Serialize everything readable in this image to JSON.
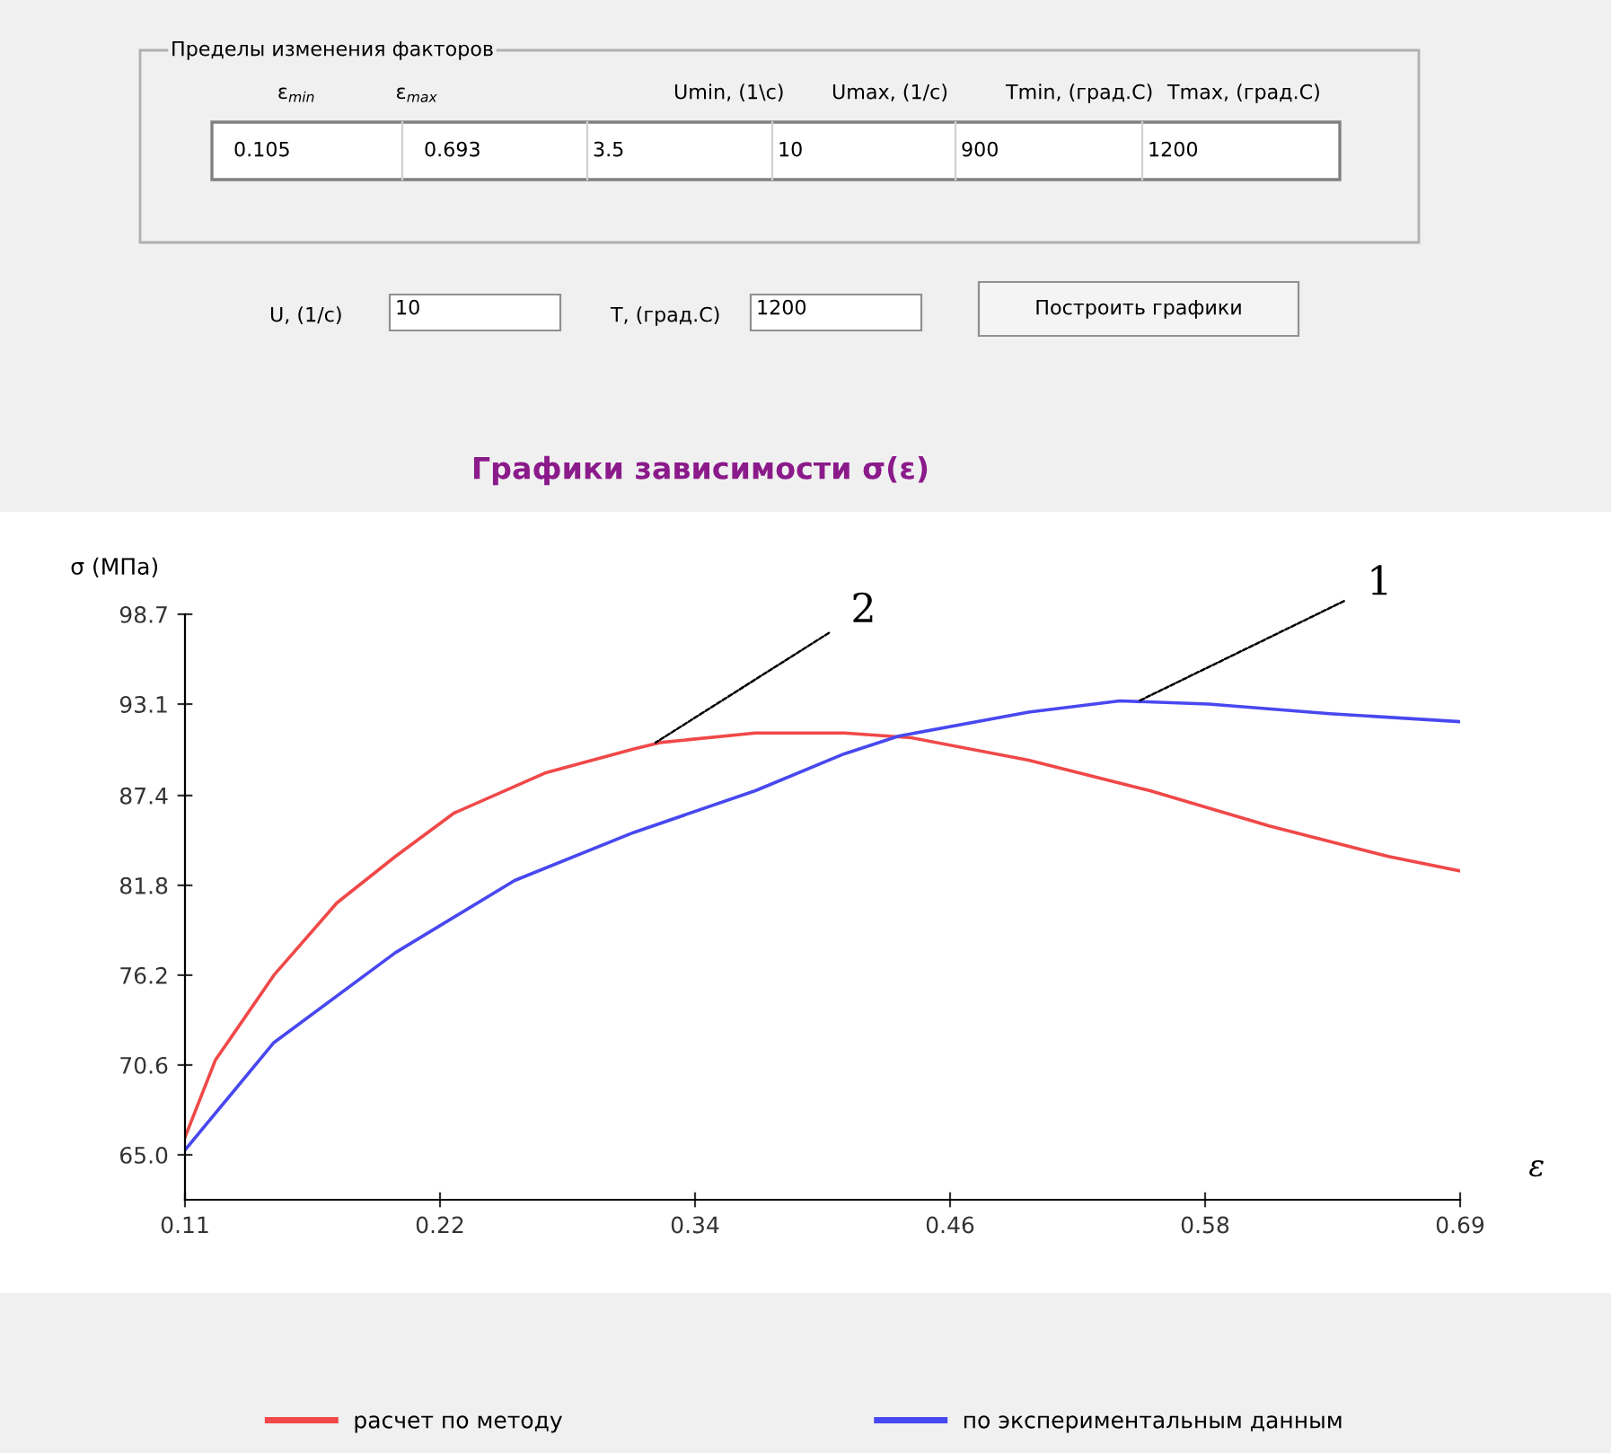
{
  "chart_data": {
    "type": "line",
    "title": "Графики зависимости σ(ε)",
    "xlabel": "ε",
    "ylabel": "σ (МПа)",
    "xlim": [
      0.105,
      0.693
    ],
    "xticks": [
      {
        "value": 0.105,
        "label": "0.11"
      },
      {
        "value": 0.2226,
        "label": "0.22"
      },
      {
        "value": 0.3402,
        "label": "0.34"
      },
      {
        "value": 0.4578,
        "label": "0.46"
      },
      {
        "value": 0.5754,
        "label": "0.58"
      },
      {
        "value": 0.693,
        "label": "0.69"
      }
    ],
    "ylim": [
      62.2,
      98.7
    ],
    "yticks": [
      {
        "value": 65,
        "label": "65.0"
      },
      70.6,
      76.2,
      81.8,
      87.4,
      93.1,
      98.7
    ],
    "grid": false,
    "legend": "bottom",
    "marker": "none",
    "line_style": "solid",
    "series": [
      {
        "name": "расчет по методу",
        "color": "#f04848",
        "x": [
          0.105,
          0.119,
          0.146,
          0.175,
          0.202,
          0.229,
          0.271,
          0.312,
          0.324,
          0.368,
          0.409,
          0.44,
          0.494,
          0.55,
          0.605,
          0.66,
          0.693
        ],
        "values": [
          66.1,
          70.9,
          76.2,
          80.7,
          83.6,
          86.3,
          88.8,
          90.3,
          90.7,
          91.3,
          91.3,
          91.0,
          89.6,
          87.7,
          85.5,
          83.6,
          82.7
        ]
      },
      {
        "name": "по экспериментальным данным",
        "color": "#4848f0",
        "x": [
          0.105,
          0.146,
          0.202,
          0.257,
          0.312,
          0.368,
          0.409,
          0.434,
          0.494,
          0.536,
          0.577,
          0.633,
          0.693
        ],
        "values": [
          65.3,
          72.0,
          77.6,
          82.1,
          85.1,
          87.7,
          90.0,
          91.1,
          92.6,
          93.3,
          93.1,
          92.5,
          92.0
        ]
      }
    ],
    "annotations": [
      {
        "text": "2",
        "x": 0.322,
        "y": 90.7
      },
      {
        "text": "1",
        "x": 0.545,
        "y": 93.3
      },
      "Пределы изменения факторов",
      "ε$_{min}$",
      "ε$_{max}$",
      "Umin, (1\\c)",
      "Umax, (1/c)",
      "Tmin, (град.С)",
      "Tmax, (град.С)",
      "0.105",
      "0.693",
      "3.5",
      "10",
      "900",
      "1200",
      "U, (1/c)",
      "10",
      "T, (град.С)",
      "1200",
      "Построить графики"
    ]
  }
}
